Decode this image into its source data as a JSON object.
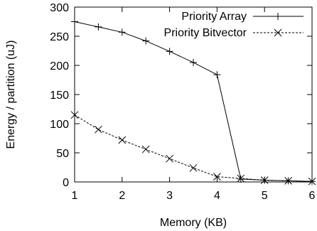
{
  "chart_data": {
    "type": "line",
    "xlabel": "Memory (KB)",
    "ylabel": "Energy / partition (uJ)",
    "xlim": [
      1,
      6
    ],
    "ylim": [
      0,
      300
    ],
    "x_ticks": [
      1,
      2,
      3,
      4,
      5,
      6
    ],
    "y_ticks": [
      0,
      50,
      100,
      150,
      200,
      250,
      300
    ],
    "grid": false,
    "legend_position": "top-right",
    "series": [
      {
        "name": "Priority Array",
        "marker": "plus",
        "line": "solid",
        "color": "#000000",
        "x": [
          1,
          1.5,
          2,
          2.5,
          3,
          3.5,
          4,
          4.5,
          5,
          5.5,
          6
        ],
        "y": [
          275,
          266,
          257,
          242,
          224,
          205,
          184,
          5,
          3,
          2,
          1
        ]
      },
      {
        "name": "Priority Bitvector",
        "marker": "cross",
        "line": "dashed",
        "color": "#000000",
        "x": [
          1,
          1.5,
          2,
          2.5,
          3,
          3.5,
          4,
          4.5,
          5,
          5.5,
          6
        ],
        "y": [
          115,
          90,
          72,
          56,
          40,
          24,
          9,
          6,
          3,
          2,
          1
        ]
      }
    ]
  }
}
